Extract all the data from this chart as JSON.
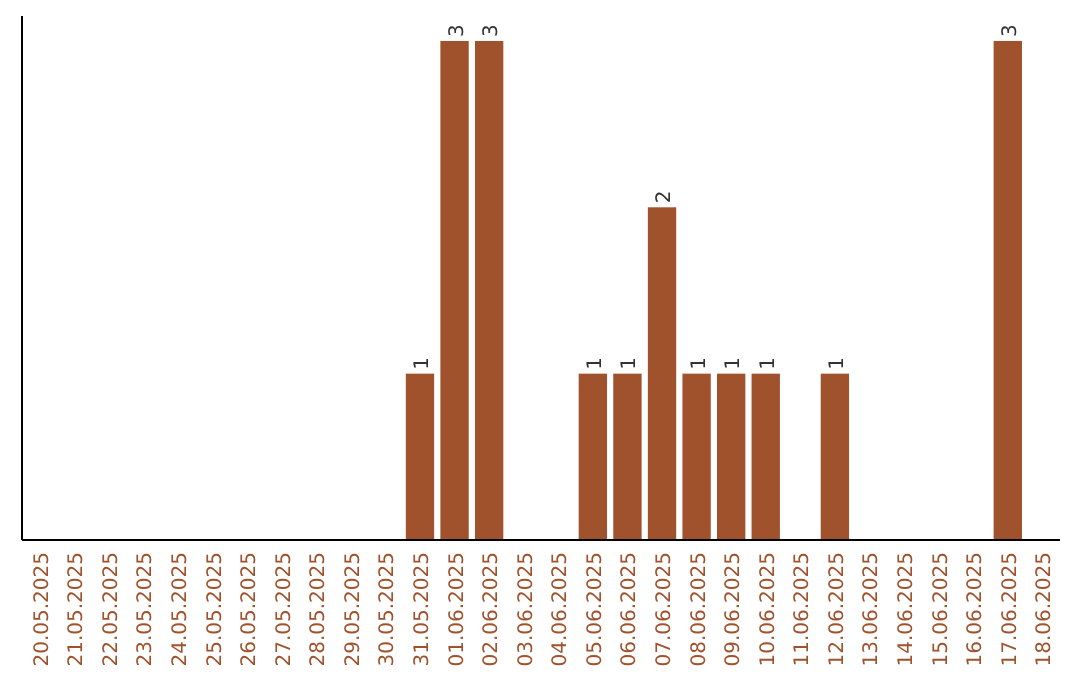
{
  "chart_data": {
    "type": "bar",
    "categories": [
      "20.05.2025",
      "21.05.2025",
      "22.05.2025",
      "23.05.2025",
      "24.05.2025",
      "25.05.2025",
      "26.05.2025",
      "27.05.2025",
      "28.05.2025",
      "29.05.2025",
      "30.05.2025",
      "31.05.2025",
      "01.06.2025",
      "02.06.2025",
      "03.06.2025",
      "04.06.2025",
      "05.06.2025",
      "06.06.2025",
      "07.06.2025",
      "08.06.2025",
      "09.06.2025",
      "10.06.2025",
      "11.06.2025",
      "12.06.2025",
      "13.06.2025",
      "14.06.2025",
      "15.06.2025",
      "16.06.2025",
      "17.06.2025",
      "18.06.2025"
    ],
    "values": [
      0,
      0,
      0,
      0,
      0,
      0,
      0,
      0,
      0,
      0,
      0,
      1,
      3,
      3,
      0,
      0,
      1,
      1,
      2,
      1,
      1,
      1,
      0,
      1,
      0,
      0,
      0,
      0,
      3,
      0
    ],
    "value_labels": [
      null,
      null,
      null,
      null,
      null,
      null,
      null,
      null,
      null,
      null,
      null,
      "1",
      "3",
      "3",
      null,
      null,
      "1",
      "1",
      "2",
      "1",
      "1",
      "1",
      null,
      "1",
      null,
      null,
      null,
      null,
      "3",
      null
    ],
    "color": "#a0522d",
    "ylim": [
      0,
      3.15
    ],
    "tick_labels": "x"
  }
}
